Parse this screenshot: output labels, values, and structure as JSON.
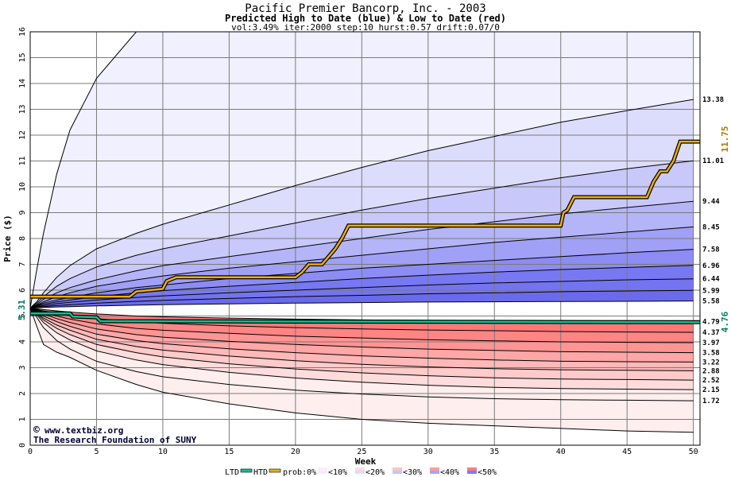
{
  "chart_data": {
    "type": "area",
    "title": "Pacific Premier Bancorp, Inc. - 2003",
    "subtitle": "Predicted High to Date (blue) &  Low to Date (red)",
    "params": "vol:3.49% iter:2000 step:10 hurst:0.57 drift:0.07/0",
    "xlabel": "Week",
    "ylabel": "Price ($)",
    "xlim": [
      0,
      50.5
    ],
    "ylim": [
      0,
      16
    ],
    "x_ticks": [
      0,
      5,
      10,
      15,
      20,
      25,
      30,
      35,
      40,
      45,
      50
    ],
    "y_ticks": [
      0,
      1,
      2,
      3,
      4,
      5,
      6,
      7,
      8,
      9,
      10,
      11,
      12,
      13,
      14,
      15,
      16
    ],
    "grid": true,
    "start_price": 5.31,
    "start_label": "5.31",
    "htd_current_label": "11.75",
    "ltd_current_label": "4.76",
    "x_samples": [
      0,
      0.5,
      1,
      2,
      3,
      5,
      8,
      10,
      15,
      20,
      25,
      30,
      35,
      40,
      45,
      50
    ],
    "high_curves": [
      {
        "end_label": "",
        "values": [
          5.31,
          6.8,
          8.2,
          10.5,
          12.2,
          14.2,
          16.0,
          16.0,
          16.0,
          16.0,
          16.0,
          16.0,
          16.0,
          16.0,
          16.0,
          16.0
        ]
      },
      {
        "end_label": "13.38",
        "values": [
          5.31,
          5.55,
          5.9,
          6.5,
          6.95,
          7.6,
          8.2,
          8.55,
          9.3,
          10.05,
          10.75,
          11.4,
          11.95,
          12.5,
          12.95,
          13.38
        ]
      },
      {
        "end_label": "11.01",
        "values": [
          5.31,
          5.5,
          5.75,
          6.15,
          6.45,
          6.9,
          7.35,
          7.6,
          8.1,
          8.6,
          9.1,
          9.55,
          9.95,
          10.35,
          10.7,
          11.01
        ]
      },
      {
        "end_label": "9.44",
        "values": [
          5.31,
          5.45,
          5.65,
          5.9,
          6.1,
          6.4,
          6.75,
          6.95,
          7.3,
          7.65,
          8.0,
          8.35,
          8.65,
          8.95,
          9.2,
          9.44
        ]
      },
      {
        "end_label": "8.45",
        "values": [
          5.31,
          5.42,
          5.55,
          5.75,
          5.9,
          6.15,
          6.4,
          6.55,
          6.85,
          7.1,
          7.35,
          7.6,
          7.85,
          8.05,
          8.25,
          8.45
        ]
      },
      {
        "end_label": "7.58",
        "values": [
          5.31,
          5.4,
          5.5,
          5.62,
          5.72,
          5.9,
          6.1,
          6.2,
          6.45,
          6.65,
          6.85,
          7.0,
          7.15,
          7.3,
          7.45,
          7.58
        ]
      },
      {
        "end_label": "6.96",
        "values": [
          5.31,
          5.38,
          5.45,
          5.55,
          5.62,
          5.75,
          5.9,
          5.98,
          6.15,
          6.3,
          6.45,
          6.58,
          6.7,
          6.8,
          6.88,
          6.96
        ]
      },
      {
        "end_label": "6.44",
        "values": [
          5.31,
          5.36,
          5.4,
          5.48,
          5.53,
          5.62,
          5.72,
          5.78,
          5.9,
          6.0,
          6.1,
          6.2,
          6.28,
          6.34,
          6.4,
          6.44
        ]
      },
      {
        "end_label": "5.99",
        "values": [
          5.31,
          5.34,
          5.36,
          5.41,
          5.44,
          5.5,
          5.57,
          5.61,
          5.68,
          5.75,
          5.8,
          5.86,
          5.9,
          5.94,
          5.97,
          5.99
        ]
      },
      {
        "end_label": "5.58",
        "values": [
          5.31,
          5.32,
          5.33,
          5.35,
          5.36,
          5.39,
          5.42,
          5.44,
          5.47,
          5.5,
          5.52,
          5.54,
          5.55,
          5.56,
          5.57,
          5.58
        ]
      }
    ],
    "low_curves": [
      {
        "end_label": "4.79",
        "values": [
          5.31,
          5.28,
          5.25,
          5.2,
          5.15,
          5.08,
          5.0,
          4.97,
          4.92,
          4.88,
          4.85,
          4.83,
          4.82,
          4.81,
          4.8,
          4.79
        ]
      },
      {
        "end_label": "4.37",
        "values": [
          5.31,
          5.25,
          5.2,
          5.1,
          5.02,
          4.9,
          4.78,
          4.72,
          4.62,
          4.55,
          4.5,
          4.46,
          4.43,
          4.4,
          4.38,
          4.37
        ]
      },
      {
        "end_label": "3.97",
        "values": [
          5.31,
          5.23,
          5.15,
          5.0,
          4.88,
          4.7,
          4.52,
          4.45,
          4.33,
          4.22,
          4.15,
          4.08,
          4.04,
          4.0,
          3.98,
          3.97
        ]
      },
      {
        "end_label": "3.58",
        "values": [
          5.31,
          5.2,
          5.08,
          4.9,
          4.75,
          4.5,
          4.28,
          4.18,
          4.02,
          3.9,
          3.8,
          3.72,
          3.67,
          3.62,
          3.6,
          3.58
        ]
      },
      {
        "end_label": "3.22",
        "values": [
          5.31,
          5.17,
          5.0,
          4.78,
          4.6,
          4.3,
          4.05,
          3.93,
          3.73,
          3.58,
          3.46,
          3.37,
          3.3,
          3.25,
          3.23,
          3.22
        ]
      },
      {
        "end_label": "2.88",
        "values": [
          5.31,
          5.13,
          4.92,
          4.65,
          4.45,
          4.1,
          3.82,
          3.68,
          3.45,
          3.27,
          3.13,
          3.03,
          2.96,
          2.92,
          2.9,
          2.88
        ]
      },
      {
        "end_label": "2.52",
        "values": [
          5.31,
          5.1,
          4.85,
          4.52,
          4.28,
          3.9,
          3.58,
          3.42,
          3.15,
          2.95,
          2.8,
          2.69,
          2.61,
          2.56,
          2.54,
          2.52
        ]
      },
      {
        "end_label": "2.15",
        "values": [
          5.31,
          5.05,
          4.75,
          4.35,
          4.07,
          3.65,
          3.3,
          3.12,
          2.82,
          2.6,
          2.44,
          2.32,
          2.24,
          2.19,
          2.17,
          2.15
        ]
      },
      {
        "end_label": "1.72",
        "values": [
          5.31,
          4.95,
          4.55,
          4.05,
          3.72,
          3.25,
          2.85,
          2.65,
          2.35,
          2.13,
          1.98,
          1.87,
          1.8,
          1.76,
          1.74,
          1.72
        ]
      },
      {
        "end_label": "",
        "values": [
          5.31,
          4.6,
          3.9,
          3.6,
          3.4,
          2.9,
          2.35,
          2.05,
          1.6,
          1.25,
          1.0,
          0.85,
          0.75,
          0.65,
          0.55,
          0.5
        ]
      }
    ],
    "band_fill_colors": [
      "#f0f0ff",
      "#dcdcfc",
      "#c8c8fa",
      "#b4b4f8",
      "#a0a0f6",
      "#8c8cf4",
      "#7878f2",
      "#7474f0",
      "#6a6aee"
    ],
    "red_fill_colors": [
      "#ffeeee",
      "#ffdcdc",
      "#ffcaca",
      "#ffb8b8",
      "#ffa6a6",
      "#ff9494",
      "#ff8484",
      "#ff7878"
    ],
    "htd_path": {
      "name": "HTD",
      "color": "#f0b000",
      "points": [
        [
          0,
          5.75
        ],
        [
          7.5,
          5.75
        ],
        [
          8,
          5.95
        ],
        [
          10,
          6.05
        ],
        [
          10.3,
          6.35
        ],
        [
          11,
          6.5
        ],
        [
          20,
          6.5
        ],
        [
          20.5,
          6.7
        ],
        [
          21,
          7.0
        ],
        [
          22,
          7.0
        ],
        [
          22.5,
          7.3
        ],
        [
          23,
          7.6
        ],
        [
          23.5,
          8.0
        ],
        [
          24,
          8.5
        ],
        [
          40,
          8.5
        ],
        [
          40.2,
          9.0
        ],
        [
          40.5,
          9.1
        ],
        [
          41,
          9.6
        ],
        [
          46.5,
          9.6
        ],
        [
          47,
          10.2
        ],
        [
          47.5,
          10.6
        ],
        [
          48,
          10.6
        ],
        [
          48.5,
          11.0
        ],
        [
          49,
          11.75
        ],
        [
          50.5,
          11.75
        ]
      ]
    },
    "ltd_path": {
      "name": "LTD",
      "color": "#00c896",
      "points": [
        [
          0,
          5.1
        ],
        [
          3,
          5.1
        ],
        [
          3.2,
          4.98
        ],
        [
          5,
          4.95
        ],
        [
          5.3,
          4.8
        ],
        [
          50.5,
          4.76
        ]
      ]
    },
    "legend": {
      "items": [
        "LTD",
        "HTD",
        "prob:0%",
        "<10%",
        "<20%",
        "<30%",
        "<40%",
        "<50%"
      ],
      "placement": "bottom"
    },
    "credits": [
      "www.textbiz.org",
      "The Research Foundation of SUNY"
    ]
  }
}
